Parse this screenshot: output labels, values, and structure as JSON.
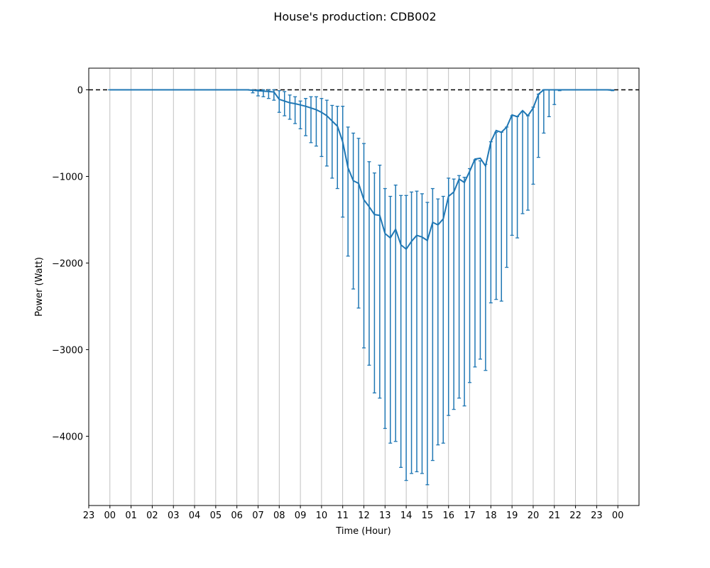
{
  "chart_data": {
    "type": "line",
    "title": "House's production: CDB002",
    "xlabel": "Time (Hour)",
    "ylabel": "Power (Watt)",
    "xlim": [
      -1.0,
      25.0
    ],
    "ylim": [
      -4800,
      250
    ],
    "x_tick_labels": [
      "23",
      "00",
      "01",
      "02",
      "03",
      "04",
      "05",
      "06",
      "07",
      "08",
      "09",
      "10",
      "11",
      "12",
      "13",
      "14",
      "15",
      "16",
      "17",
      "18",
      "19",
      "20",
      "21",
      "22",
      "23",
      "00"
    ],
    "y_ticks": [
      0,
      -1000,
      -2000,
      -3000,
      -4000
    ],
    "y_tick_labels": [
      "0",
      "−1000",
      "−2000",
      "−3000",
      "−4000"
    ],
    "grid": "vertical",
    "reference_line": {
      "y": 0,
      "style": "dashed",
      "color": "#000000"
    },
    "colors": {
      "series": "#1f77b4"
    },
    "series": [
      {
        "x": [
          0.0,
          0.25,
          0.5,
          0.75,
          1.0,
          1.25,
          1.5,
          1.75,
          2.0,
          2.25,
          2.5,
          2.75,
          3.0,
          3.25,
          3.5,
          3.75,
          4.0,
          4.25,
          4.5,
          4.75,
          5.0,
          5.25,
          5.5,
          5.75,
          6.0,
          6.25,
          6.5,
          6.75,
          7.0,
          7.25,
          7.5,
          7.75,
          8.0,
          8.25,
          8.5,
          8.75,
          9.0,
          9.25,
          9.5,
          9.75,
          10.0,
          10.25,
          10.5,
          10.75,
          11.0,
          11.25,
          11.5,
          11.75,
          12.0,
          12.25,
          12.5,
          12.75,
          13.0,
          13.25,
          13.5,
          13.75,
          14.0,
          14.25,
          14.5,
          14.75,
          15.0,
          15.25,
          15.5,
          15.75,
          16.0,
          16.25,
          16.5,
          16.75,
          17.0,
          17.25,
          17.5,
          17.75,
          18.0,
          18.25,
          18.5,
          18.75,
          19.0,
          19.25,
          19.5,
          19.75,
          20.0,
          20.25,
          20.5,
          20.75,
          21.0,
          21.25,
          21.5,
          21.75,
          22.0,
          22.25,
          22.5,
          22.75,
          23.0,
          23.25,
          23.5,
          23.75
        ],
        "y": [
          0,
          0,
          0,
          0,
          0,
          0,
          0,
          0,
          0,
          0,
          0,
          0,
          0,
          0,
          0,
          0,
          0,
          0,
          0,
          0,
          0,
          0,
          0,
          0,
          0,
          0,
          0,
          -5,
          -10,
          -15,
          -20,
          -25,
          -110,
          -130,
          -150,
          -160,
          -175,
          -190,
          -210,
          -230,
          -260,
          -300,
          -360,
          -420,
          -600,
          -900,
          -1050,
          -1080,
          -1270,
          -1350,
          -1440,
          -1450,
          -1660,
          -1710,
          -1610,
          -1790,
          -1840,
          -1750,
          -1680,
          -1700,
          -1740,
          -1530,
          -1560,
          -1490,
          -1230,
          -1180,
          -1030,
          -1070,
          -940,
          -800,
          -790,
          -880,
          -600,
          -470,
          -490,
          -430,
          -290,
          -310,
          -240,
          -300,
          -210,
          -50,
          0,
          0,
          0,
          0,
          0,
          0,
          0,
          0,
          0,
          0,
          0,
          0,
          0,
          -5
        ],
        "y_low": [
          0,
          0,
          0,
          0,
          0,
          0,
          0,
          0,
          0,
          0,
          0,
          0,
          0,
          0,
          0,
          0,
          0,
          0,
          0,
          0,
          0,
          0,
          0,
          0,
          0,
          0,
          0,
          -35,
          -70,
          -80,
          -100,
          -120,
          -260,
          -300,
          -340,
          -390,
          -450,
          -530,
          -610,
          -650,
          -770,
          -880,
          -1020,
          -1140,
          -1470,
          -1920,
          -2300,
          -2520,
          -2980,
          -3180,
          -3500,
          -3560,
          -3910,
          -4080,
          -4060,
          -4360,
          -4510,
          -4430,
          -4410,
          -4430,
          -4560,
          -4280,
          -4100,
          -4080,
          -3760,
          -3690,
          -3560,
          -3650,
          -3380,
          -3200,
          -3110,
          -3240,
          -2460,
          -2420,
          -2440,
          -2050,
          -1680,
          -1710,
          -1430,
          -1390,
          -1090,
          -780,
          -500,
          -310,
          -170,
          -10,
          0,
          0,
          0,
          0,
          0,
          0,
          0,
          0,
          0,
          -10
        ],
        "y_high": [
          0,
          0,
          0,
          0,
          0,
          0,
          0,
          0,
          0,
          0,
          0,
          0,
          0,
          0,
          0,
          0,
          0,
          0,
          0,
          0,
          0,
          0,
          0,
          0,
          0,
          0,
          0,
          0,
          0,
          0,
          0,
          0,
          -10,
          -20,
          -60,
          -80,
          -130,
          -100,
          -80,
          -80,
          -100,
          -120,
          -180,
          -190,
          -190,
          -430,
          -500,
          -560,
          -620,
          -830,
          -960,
          -870,
          -1140,
          -1230,
          -1100,
          -1220,
          -1220,
          -1180,
          -1170,
          -1200,
          -1300,
          -1140,
          -1260,
          -1230,
          -1020,
          -1030,
          -990,
          -1010,
          -910,
          -810,
          -820,
          -860,
          -600,
          -490,
          -490,
          -430,
          -300,
          -310,
          -250,
          -300,
          -200,
          -50,
          0,
          0,
          0,
          0,
          0,
          0,
          0,
          0,
          0,
          0,
          0,
          0,
          0,
          0
        ]
      }
    ]
  }
}
